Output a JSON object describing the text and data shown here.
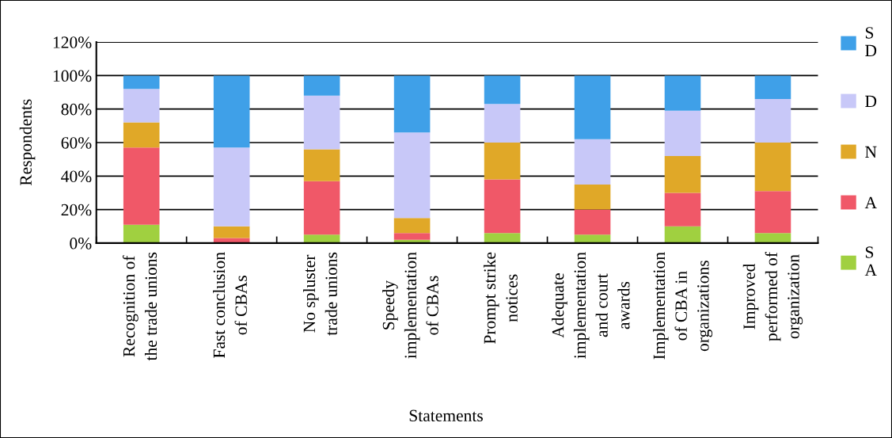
{
  "chart_data": {
    "type": "bar",
    "stacked": true,
    "xlabel": "Statements",
    "ylabel": "Respondents",
    "categories": [
      "Recognition of\nthe trade unions",
      "Fast conclusion\nof CBAs",
      "No spluster\ntrade unions",
      "Speedy\nimplementation\nof CBAs",
      "Prompt strike\nnotices",
      "Adequate\nimplementation\nand court\nawards",
      "Implementation\nof CBA in\norganizations",
      "Improved\nperformed of\norganization"
    ],
    "series": [
      {
        "name": "S\nA",
        "color": "#a0d040",
        "values": [
          11,
          0,
          5,
          2,
          6,
          5,
          10,
          6
        ]
      },
      {
        "name": "A",
        "color": "#f05868",
        "values": [
          46,
          3,
          32,
          4,
          32,
          15,
          20,
          25
        ]
      },
      {
        "name": "N",
        "color": "#e0a828",
        "values": [
          15,
          7,
          19,
          9,
          22,
          15,
          22,
          29
        ]
      },
      {
        "name": "D",
        "color": "#c8c8f8",
        "values": [
          20,
          47,
          32,
          51,
          23,
          27,
          27,
          26
        ]
      },
      {
        "name": "S\nD",
        "color": "#3fa0e8",
        "values": [
          8,
          43,
          12,
          34,
          17,
          38,
          21,
          14
        ]
      }
    ],
    "ylim": [
      0,
      120
    ],
    "yticks": [
      {
        "value": 0,
        "label": "0%"
      },
      {
        "value": 20,
        "label": "20%"
      },
      {
        "value": 40,
        "label": "40%"
      },
      {
        "value": 60,
        "label": "60%"
      },
      {
        "value": 80,
        "label": "80%"
      },
      {
        "value": 100,
        "label": "100%"
      },
      {
        "value": 120,
        "label": "120%"
      }
    ],
    "grid": "y",
    "legend": "right"
  }
}
